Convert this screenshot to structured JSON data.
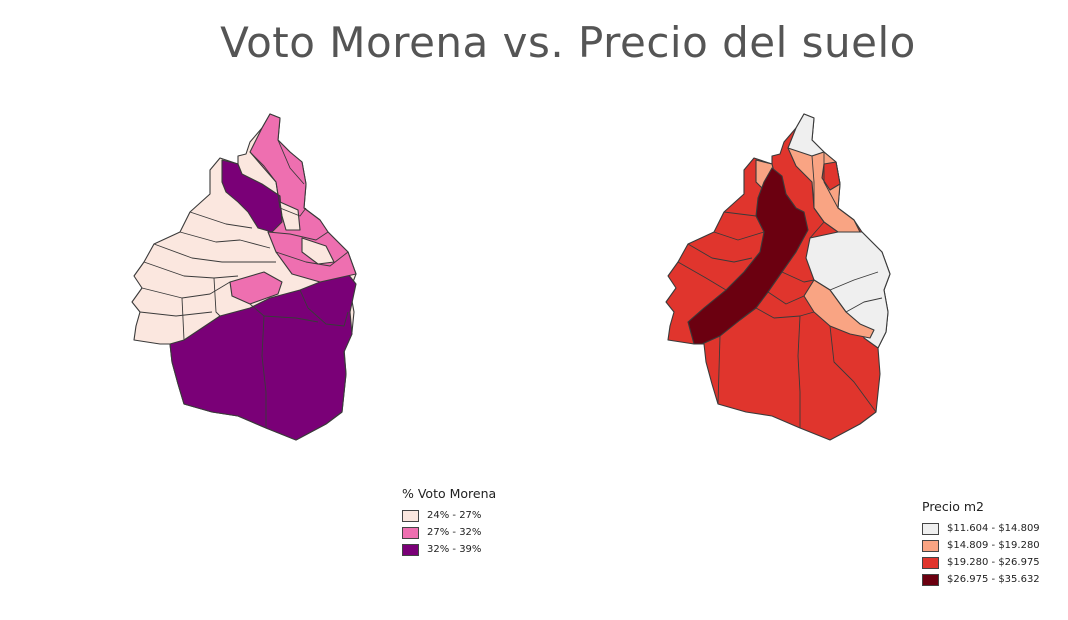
{
  "title": "Voto Morena vs. Precio del suelo",
  "maps": [
    {
      "legend_title": "% Voto Morena",
      "classes": [
        {
          "label": "24% - 27%",
          "color": "#fbe7df"
        },
        {
          "label": "27% - 32%",
          "color": "#ee6fb0"
        },
        {
          "label": "32% - 39%",
          "color": "#7a0077"
        }
      ]
    },
    {
      "legend_title": "Precio m2",
      "classes": [
        {
          "label": "$11.604 - $14.809",
          "color": "#efefef"
        },
        {
          "label": "$14.809 - $19.280",
          "color": "#f9a483"
        },
        {
          "label": "$19.280 - $26.975",
          "color": "#e0352d"
        },
        {
          "label": "$26.975 - $35.632",
          "color": "#6b0010"
        }
      ]
    }
  ]
}
